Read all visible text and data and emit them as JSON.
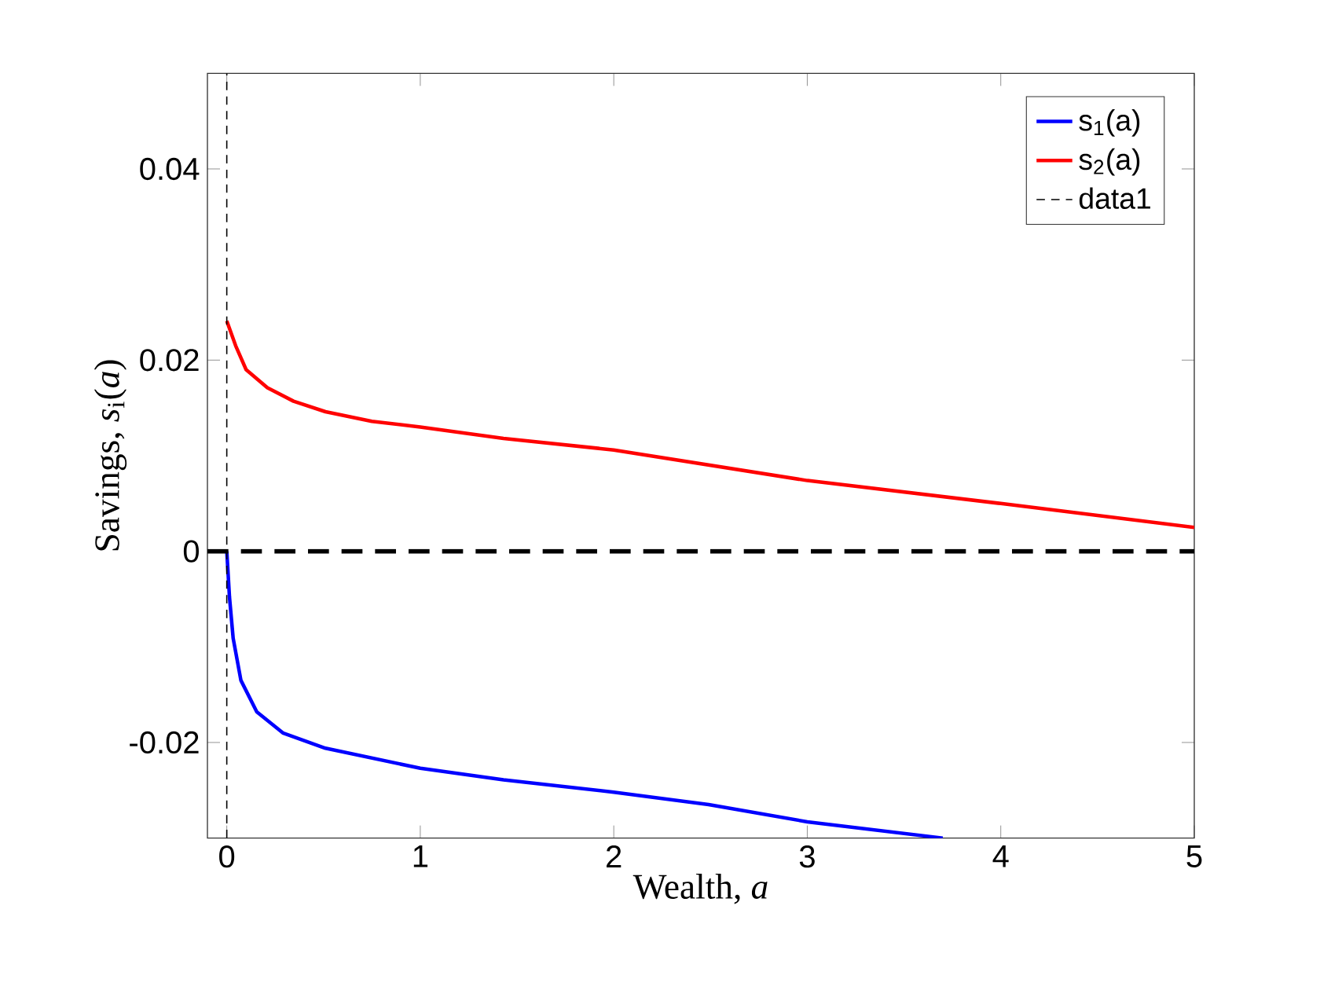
{
  "chart_data": {
    "type": "line",
    "xlabel": "Wealth, *a*",
    "ylabel": "Savings, *s*$_{i}$(*a*)",
    "xlim": [
      -0.1,
      5
    ],
    "ylim": [
      -0.03,
      0.05
    ],
    "xticks": [
      0,
      1,
      2,
      3,
      4,
      5
    ],
    "yticks": [
      -0.02,
      0,
      0.02,
      0.04
    ],
    "legend": "top right",
    "grid": false,
    "marker": "none",
    "series": [
      {
        "name": "s$_{1}$(a)",
        "color": "#0000ff",
        "line_style": "solid",
        "x": [
          0,
          0.014,
          0.033,
          0.073,
          0.155,
          0.29,
          0.51,
          1.0,
          1.43,
          2.0,
          2.49,
          3.0,
          3.7
        ],
        "values": [
          0,
          -0.0048,
          -0.0091,
          -0.0135,
          -0.0168,
          -0.019,
          -0.0206,
          -0.0227,
          -0.0239,
          -0.0252,
          -0.0265,
          -0.0283,
          -0.03
        ]
      },
      {
        "name": "s$_{2}$(a)",
        "color": "#ff0000",
        "line_style": "solid",
        "x": [
          0,
          0.046,
          0.1,
          0.21,
          0.345,
          0.51,
          0.75,
          1.0,
          1.43,
          2.0,
          2.5,
          3.0,
          4.0,
          5.0
        ],
        "values": [
          0.0241,
          0.0215,
          0.019,
          0.0171,
          0.0157,
          0.0146,
          0.0136,
          0.013,
          0.0118,
          0.0106,
          0.009,
          0.0074,
          0.005,
          0.0025
        ]
      },
      {
        "name": "data1",
        "color": "#000000",
        "line_style": "dashed",
        "x": [
          0,
          0
        ],
        "values": [
          -0.03,
          0.05
        ]
      }
    ],
    "ref_lines": [
      {
        "axis": "y",
        "value": 0,
        "color": "#000000",
        "line_style": "dashed"
      }
    ]
  }
}
